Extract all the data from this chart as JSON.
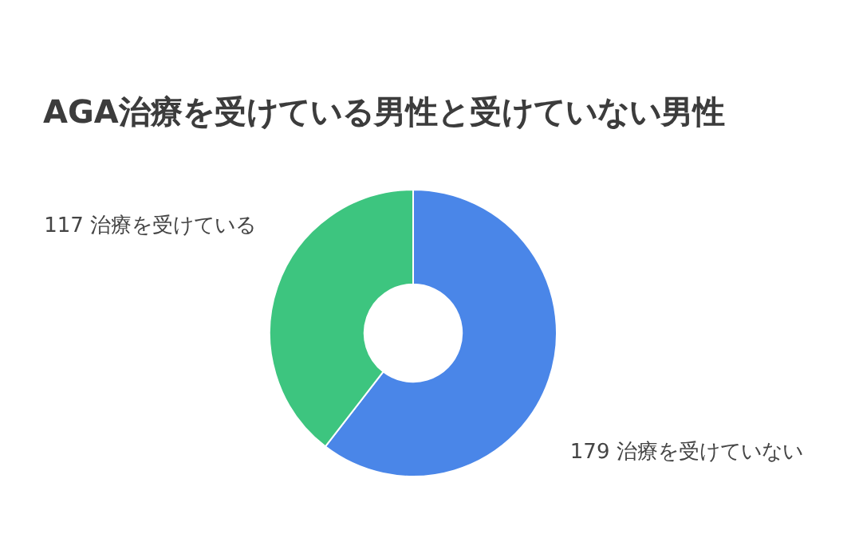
{
  "chart_data": {
    "type": "donut",
    "title": "AGA治療を受けている男性と受けていない男性",
    "categories": [
      "治療を受けていない",
      "治療を受けている"
    ],
    "values": [
      179,
      117
    ],
    "colors": [
      "#4a86e8",
      "#3dc57f"
    ],
    "data_labels": true
  }
}
